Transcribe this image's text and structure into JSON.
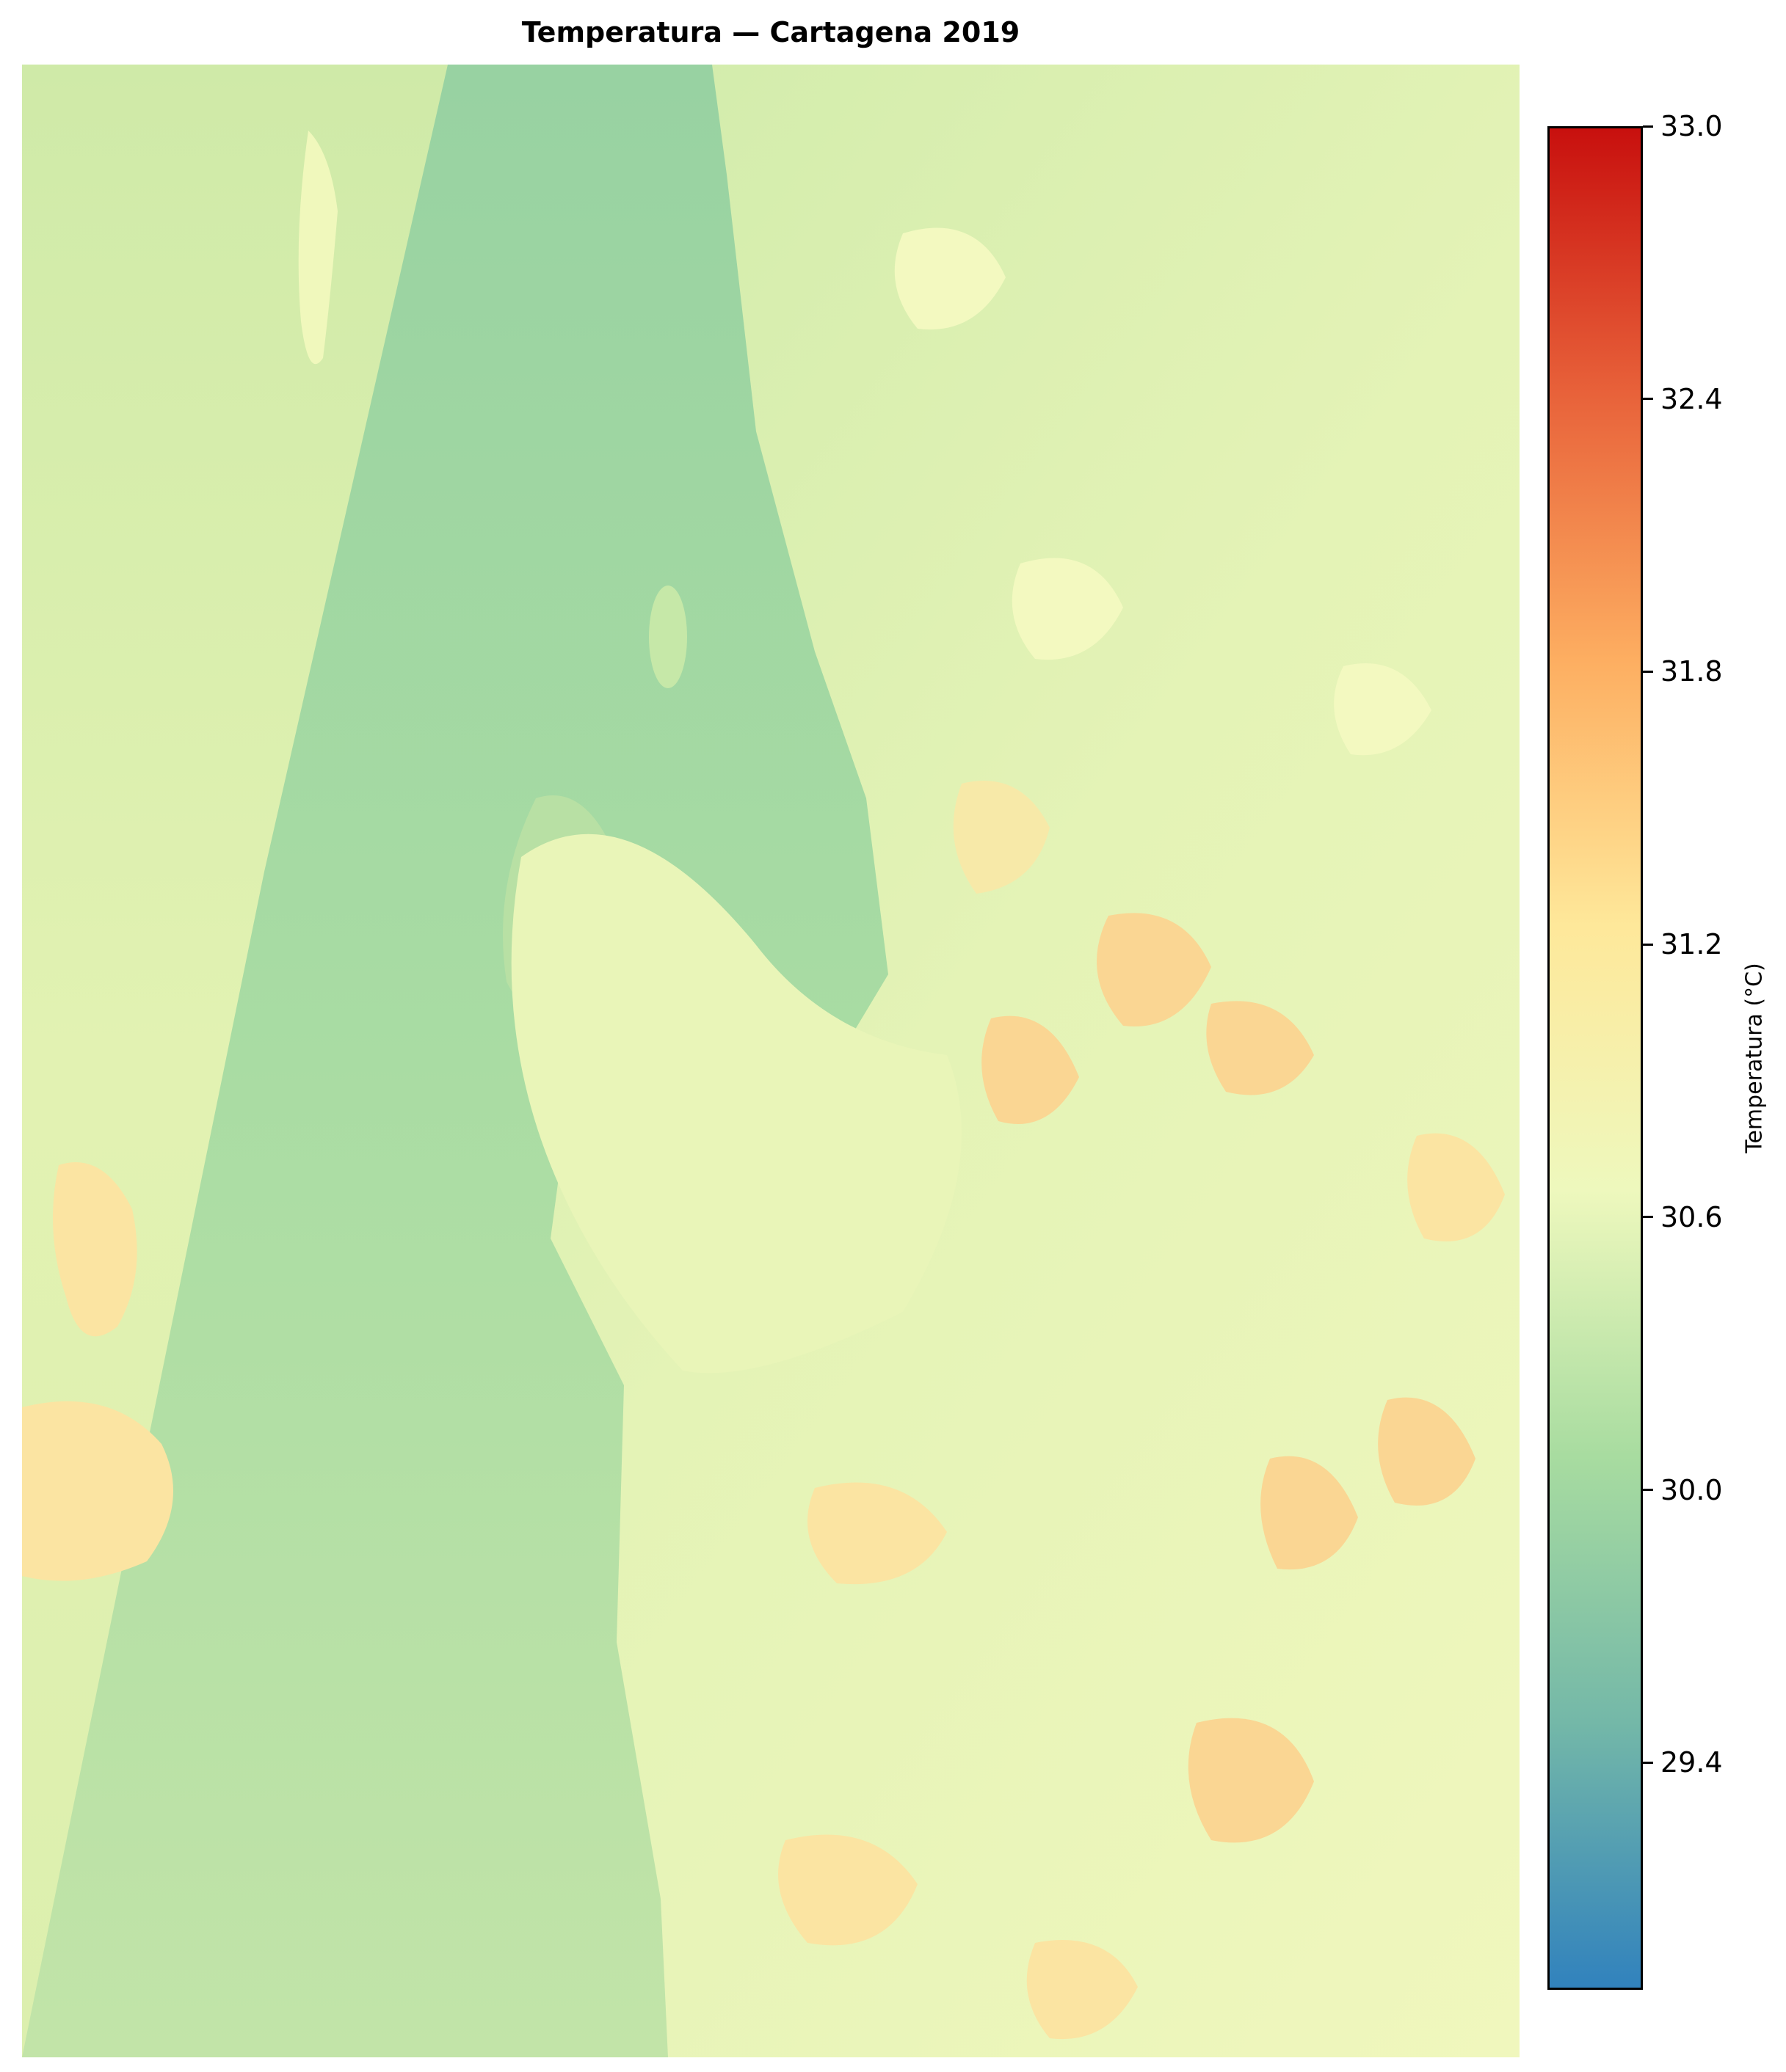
{
  "title": "Temperatura — Cartagena 2019",
  "colorbar": {
    "label": "Temperatura (°C)",
    "min": 28.9,
    "max": 33.0,
    "ticks": [
      "33.0",
      "32.4",
      "31.8",
      "31.2",
      "30.6",
      "30.0",
      "29.4"
    ],
    "colormap": "RdYlBu_r",
    "colors": [
      "#3182bd",
      "#74b8a8",
      "#a8dca0",
      "#eef8bd",
      "#fee89a",
      "#fdae61",
      "#e8623a",
      "#c8100e"
    ]
  },
  "map": {
    "colors": {
      "sea_green": "#a6d9a3",
      "inland_pale": "#e6f5b5",
      "warm_patch": "#fbe4a2",
      "hot_patch": "#fbd08c",
      "left_strip": "#def0b0"
    }
  }
}
